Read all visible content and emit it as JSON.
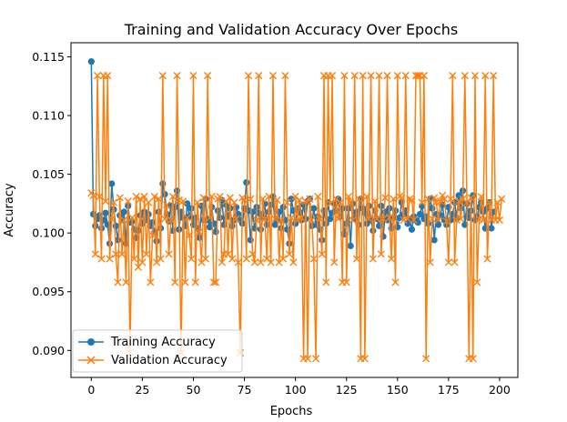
{
  "chart_data": {
    "type": "line",
    "title": "Training and Validation Accuracy Over Epochs",
    "xlabel": "Epochs",
    "ylabel": "Accuracy",
    "xlim": [
      -9.95,
      208.95
    ],
    "ylim": [
      0.0877,
      0.1162
    ],
    "xticks": [
      0,
      25,
      50,
      75,
      100,
      125,
      150,
      175,
      200
    ],
    "yticks": [
      0.09,
      0.095,
      0.1,
      0.105,
      0.11,
      0.115
    ],
    "xtick_labels": [
      "0",
      "25",
      "50",
      "75",
      "100",
      "125",
      "150",
      "175",
      "200"
    ],
    "ytick_labels": [
      "0.090",
      "0.095",
      "0.100",
      "0.105",
      "0.110",
      "0.115"
    ],
    "grid": false,
    "legend_position": "lower-left",
    "series": [
      {
        "name": "Training Accuracy",
        "color": "#1f77b4",
        "marker": "circle",
        "values": [
          0.1146,
          0.1016,
          0.1006,
          0.1012,
          0.1015,
          0.1004,
          0.1011,
          0.1017,
          0.1007,
          0.0991,
          0.1042,
          0.102,
          0.1006,
          0.0994,
          0.1015,
          0.1011,
          0.1018,
          0.0991,
          0.1023,
          0.1009,
          0.101,
          0.1003,
          0.0996,
          0.1002,
          0.1015,
          0.1008,
          0.1018,
          0.1011,
          0.1016,
          0.1006,
          0.1009,
          0.1001,
          0.0993,
          0.1018,
          0.1004,
          0.1042,
          0.1033,
          0.1016,
          0.101,
          0.1023,
          0.1002,
          0.1022,
          0.1036,
          0.1003,
          0.1018,
          0.1013,
          0.1006,
          0.1025,
          0.1014,
          0.1021,
          0.1007,
          0.1013,
          0.1004,
          0.0996,
          0.1023,
          0.1011,
          0.1029,
          0.1011,
          0.1005,
          0.1022,
          0.1008,
          0.1001,
          0.1019,
          0.1013,
          0.1028,
          0.1007,
          0.1024,
          0.1014,
          0.1021,
          0.1006,
          0.1011,
          0.1022,
          0.1016,
          0.1011,
          0.1008,
          0.1021,
          0.1043,
          0.1019,
          0.0994,
          0.1018,
          0.1004,
          0.1022,
          0.1017,
          0.1003,
          0.1013,
          0.1025,
          0.1007,
          0.1018,
          0.1024,
          0.1031,
          0.1007,
          0.1012,
          0.1018,
          0.1004,
          0.1022,
          0.1011,
          0.1003,
          0.0991,
          0.1029,
          0.1019,
          0.1008,
          0.1021,
          0.1018,
          0.1011,
          0.1024,
          0.1012,
          0.1027,
          0.1029,
          0.1006,
          0.1021,
          0.1007,
          0.1014,
          0.1003,
          0.0994,
          0.1019,
          0.1008,
          0.1026,
          0.1012,
          0.1017,
          0.1025,
          0.1019,
          0.1029,
          0.1014,
          0.1021,
          0.0999,
          0.1008,
          0.1021,
          0.0989,
          0.1025,
          0.1012,
          0.1018,
          0.1007,
          0.1029,
          0.1021,
          0.1017,
          0.1008,
          0.1023,
          0.1011,
          0.1002,
          0.1019,
          0.1012,
          0.1006,
          0.1023,
          0.0997,
          0.1018,
          0.1011,
          0.1021,
          0.1004,
          0.1013,
          0.1019,
          0.1005,
          0.1013,
          0.1026,
          0.1016,
          0.1019,
          0.1008,
          0.1012,
          0.1003,
          0.1014,
          0.1011,
          0.1009,
          0.1016,
          0.1023,
          0.1012,
          0.1014,
          0.1008,
          0.1029,
          0.1021,
          0.0994,
          0.1016,
          0.1007,
          0.1015,
          0.1024,
          0.1011,
          0.1007,
          0.1022,
          0.1011,
          0.1016,
          0.1026,
          0.1013,
          0.1032,
          0.1021,
          0.1036,
          0.1007,
          0.1025,
          0.1013,
          0.1019,
          0.1032,
          0.1011,
          0.1014,
          0.1022,
          0.1026,
          0.1018,
          0.1004,
          0.1021,
          0.1026,
          0.1004,
          0.1018
        ]
      },
      {
        "name": "Validation Accuracy",
        "color": "#ff7f0e",
        "marker": "x",
        "values": [
          0.1034,
          0.1032,
          0.0982,
          0.1134,
          0.1031,
          0.0978,
          0.1134,
          0.1027,
          0.1134,
          0.0978,
          0.1012,
          0.1026,
          0.0982,
          0.0958,
          0.103,
          0.0982,
          0.1011,
          0.0958,
          0.1027,
          0.0898,
          0.1013,
          0.0978,
          0.1031,
          0.0971,
          0.1029,
          0.0975,
          0.1031,
          0.0982,
          0.1026,
          0.0958,
          0.0998,
          0.1031,
          0.0975,
          0.1029,
          0.0978,
          0.1134,
          0.1012,
          0.1024,
          0.0982,
          0.1011,
          0.1031,
          0.0958,
          0.1134,
          0.1028,
          0.0898,
          0.1027,
          0.0958,
          0.1013,
          0.0998,
          0.0978,
          0.1134,
          0.0958,
          0.1026,
          0.1001,
          0.0975,
          0.103,
          0.0978,
          0.1134,
          0.1013,
          0.1031,
          0.0958,
          0.0958,
          0.1029,
          0.1031,
          0.0975,
          0.0982,
          0.1027,
          0.0982,
          0.103,
          0.0978,
          0.1026,
          0.1012,
          0.0975,
          0.0898,
          0.103,
          0.1028,
          0.0978,
          0.1134,
          0.1029,
          0.0982,
          0.0975,
          0.1011,
          0.1134,
          0.0975,
          0.1029,
          0.1012,
          0.0978,
          0.1031,
          0.0975,
          0.1134,
          0.1012,
          0.1028,
          0.0975,
          0.1011,
          0.0978,
          0.1134,
          0.1026,
          0.0982,
          0.1013,
          0.0975,
          0.1031,
          0.1011,
          0.1028,
          0.1013,
          0.0893,
          0.1027,
          0.0893,
          0.1029,
          0.1011,
          0.0978,
          0.0893,
          0.1031,
          0.1012,
          0.0982,
          0.1134,
          0.0958,
          0.1134,
          0.1025,
          0.1134,
          0.0975,
          0.1029,
          0.1012,
          0.1026,
          0.0958,
          0.1134,
          0.0958,
          0.1031,
          0.1026,
          0.1011,
          0.1134,
          0.0978,
          0.1029,
          0.0893,
          0.1134,
          0.0893,
          0.1031,
          0.1012,
          0.1134,
          0.0978,
          0.1027,
          0.1012,
          0.1134,
          0.0982,
          0.1012,
          0.103,
          0.1134,
          0.1013,
          0.0978,
          0.1029,
          0.0958,
          0.1134,
          0.1031,
          0.103,
          0.1011,
          0.1134,
          0.1012,
          0.1029,
          0.1028,
          0.1011,
          0.1134,
          0.1134,
          0.1134,
          0.1026,
          0.1134,
          0.0893,
          0.1029,
          0.0975,
          0.1012,
          0.103,
          0.1026,
          0.1011,
          0.1027,
          0.1032,
          0.1029,
          0.101,
          0.0975,
          0.1029,
          0.1134,
          0.0975,
          0.1011,
          0.1027,
          0.1012,
          0.1029,
          0.1134,
          0.1026,
          0.0893,
          0.103,
          0.0893,
          0.1134,
          0.0958,
          0.1012,
          0.1031,
          0.1011,
          0.1134,
          0.0978,
          0.1026,
          0.1011,
          0.1134,
          0.1011,
          0.1026,
          0.1011,
          0.1029
        ]
      }
    ]
  }
}
